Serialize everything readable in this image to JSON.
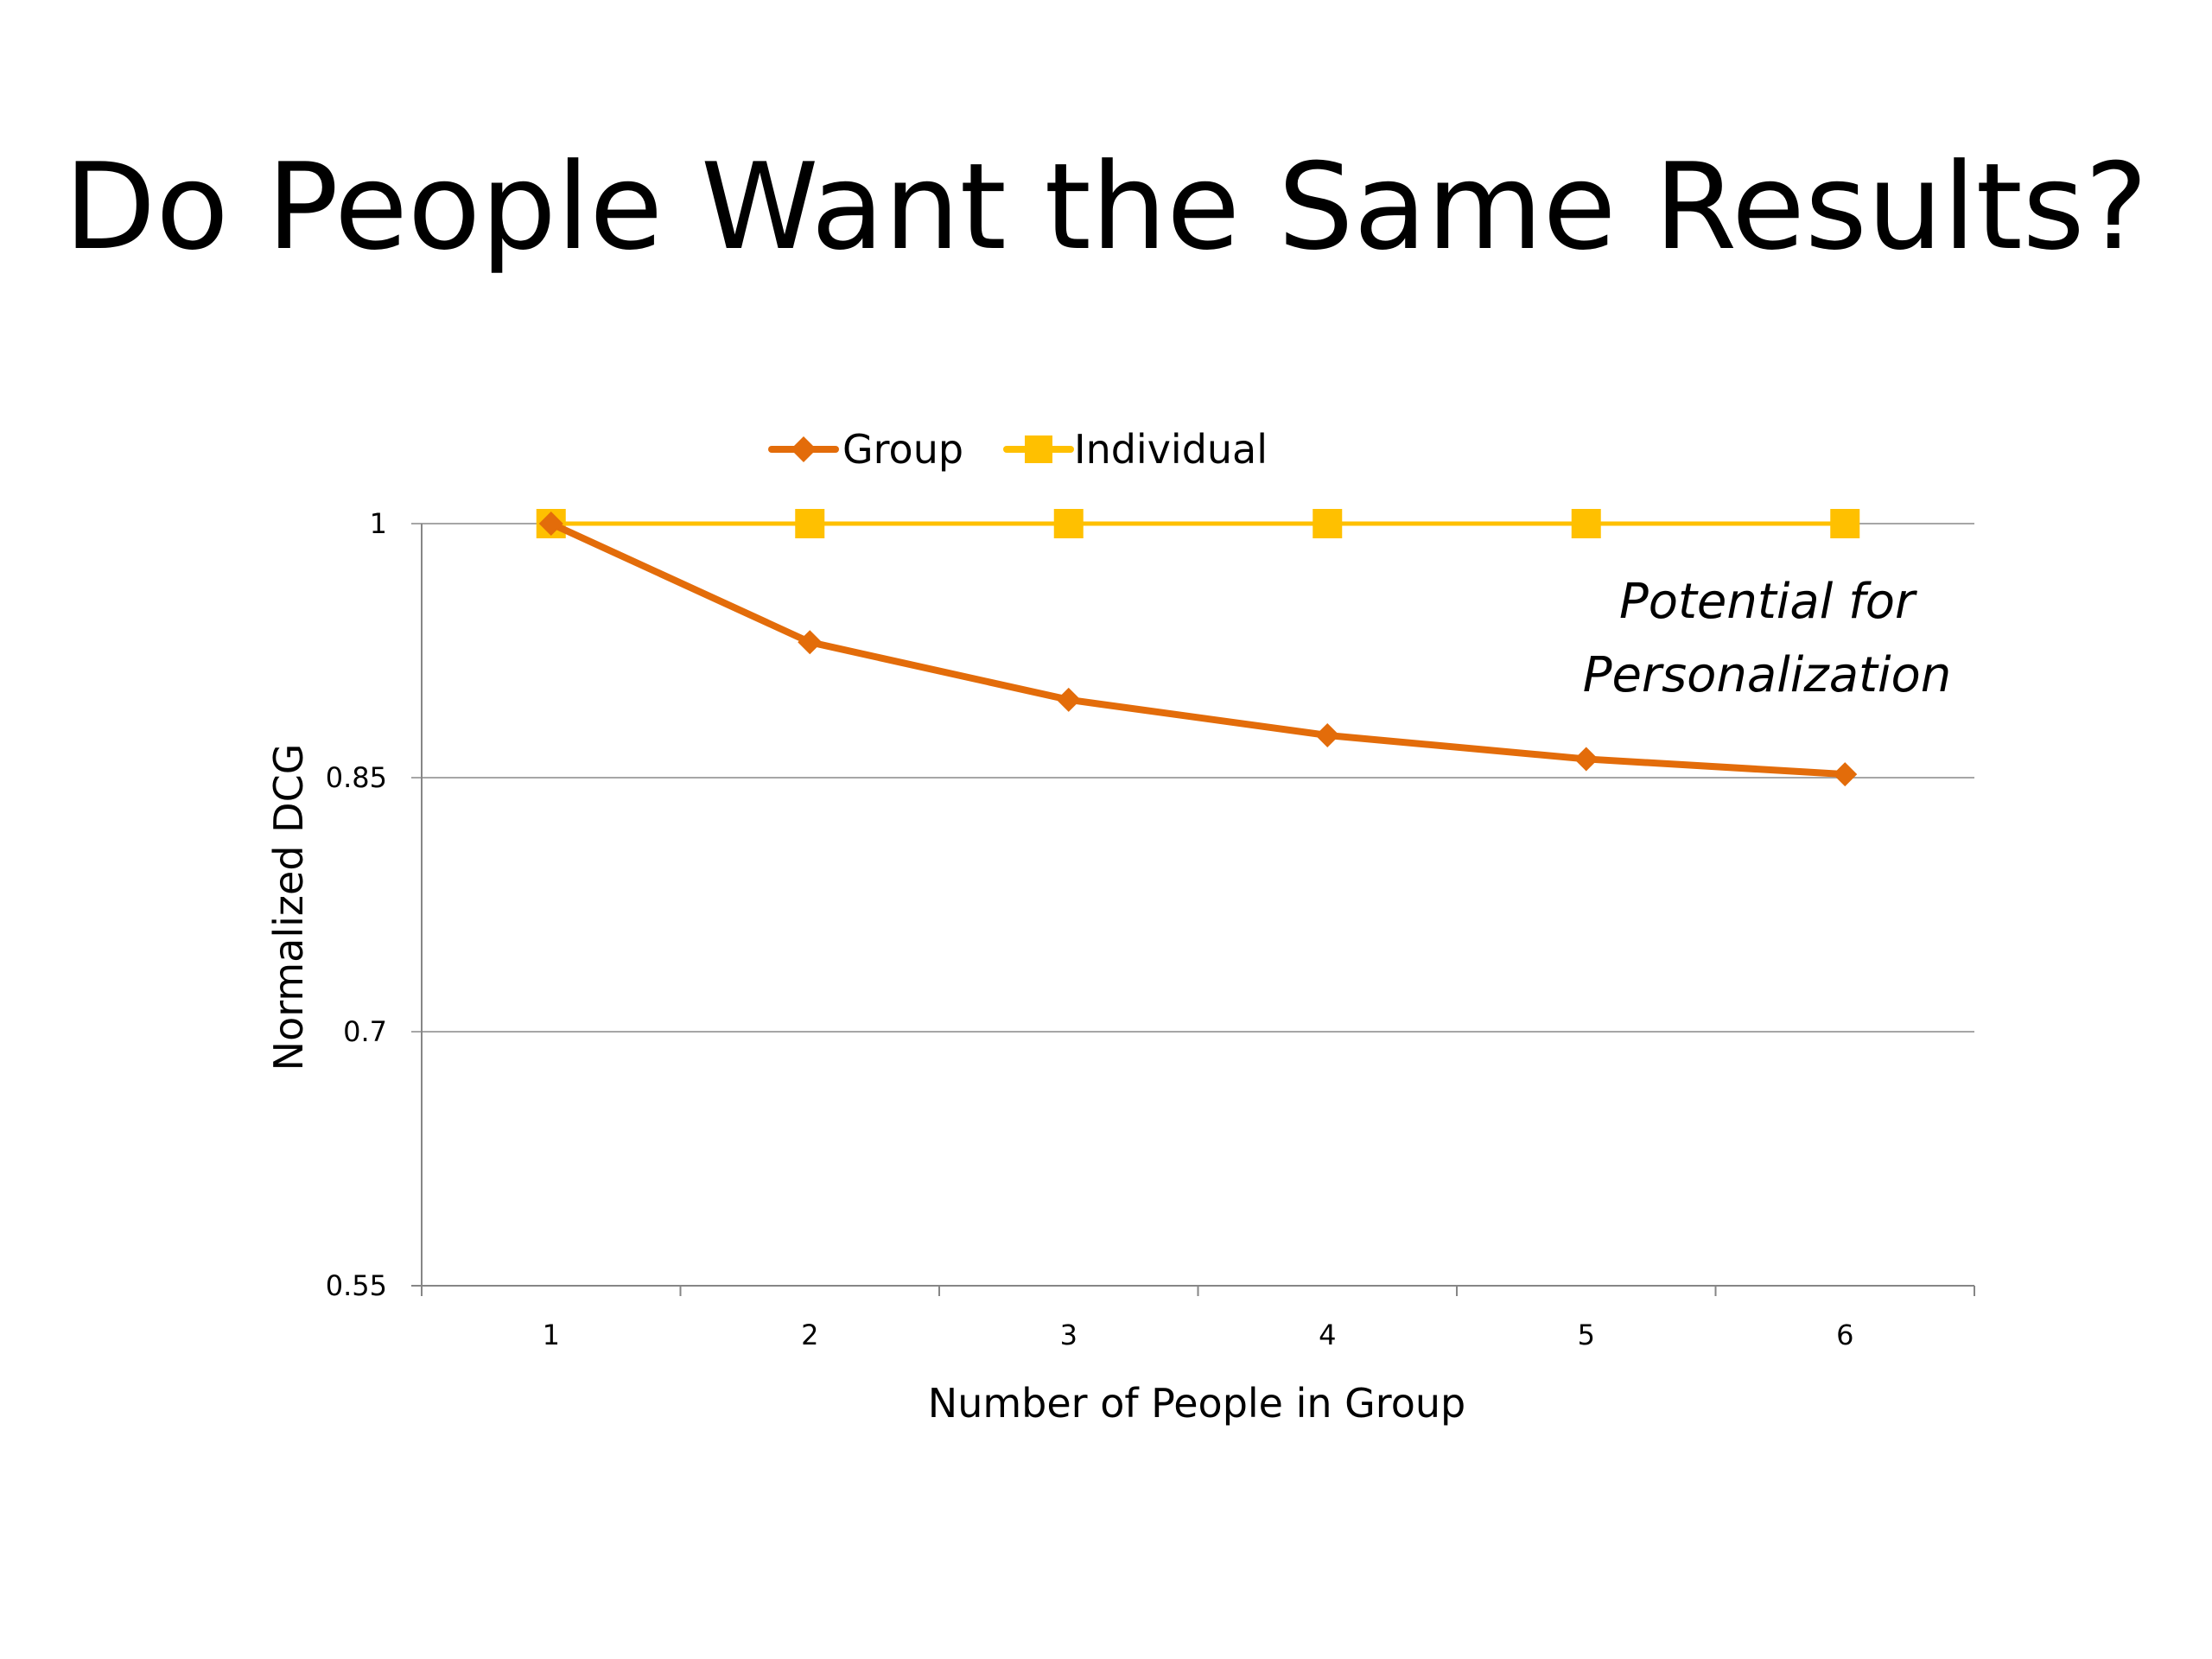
{
  "slide": {
    "title": "Do People Want the Same Results?"
  },
  "colors": {
    "group": "#E36C0A",
    "individual": "#FFC000",
    "gridline": "#A6A6A6",
    "axis": "#868686"
  },
  "chart_data": {
    "type": "line",
    "x": [
      1,
      2,
      3,
      4,
      5,
      6
    ],
    "x_tick_labels": [
      "1",
      "2",
      "3",
      "4",
      "5",
      "6"
    ],
    "y_tick_labels": [
      "1",
      "0.85",
      "0.7",
      "0.55"
    ],
    "y_ticks": [
      1,
      0.85,
      0.7,
      0.55
    ],
    "ylim": [
      0.55,
      1
    ],
    "xlabel": "Number of People in Group",
    "ylabel": "Normalized DCG",
    "grid": true,
    "legend_position": "top",
    "series": [
      {
        "name": "Group",
        "marker": "diamond",
        "color_key": "group",
        "values": [
          1.0,
          0.93,
          0.896,
          0.875,
          0.861,
          0.852
        ]
      },
      {
        "name": "Individual",
        "marker": "square",
        "color_key": "individual",
        "values": [
          1.0,
          1.0,
          1.0,
          1.0,
          1.0,
          1.0
        ]
      }
    ],
    "annotation": {
      "lines": [
        "Potential for",
        "Personalization"
      ]
    }
  }
}
